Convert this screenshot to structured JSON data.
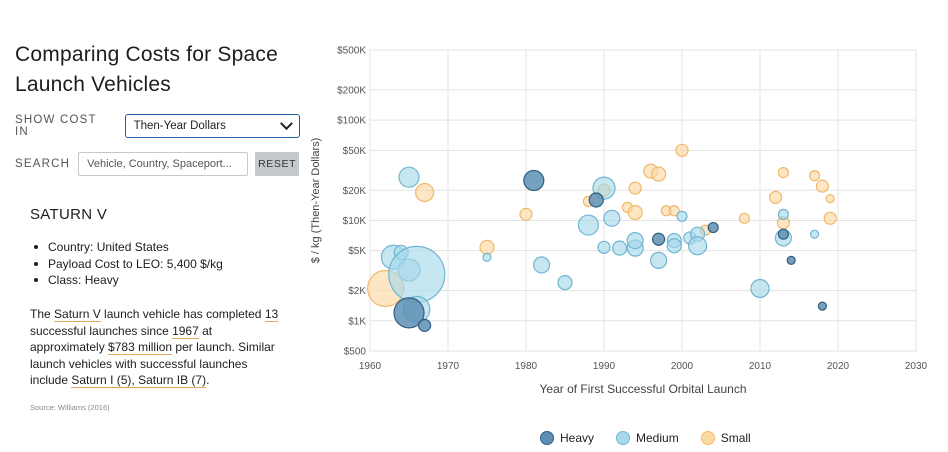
{
  "title_line1": "Comparing Costs for Space",
  "title_line2": "Launch Vehicles",
  "controls": {
    "show_cost_label": "SHOW COST IN",
    "cost_select_value": "Then-Year Dollars",
    "search_label": "SEARCH",
    "search_placeholder": "Vehicle, Country, Spaceport...",
    "reset_label": "RESET"
  },
  "vehicle": {
    "name": "SATURN V",
    "country_label": "Country:",
    "country": "United States",
    "payload_label": "Payload Cost to LEO:",
    "payload": "5,400 $/kg",
    "class_label": "Class:",
    "class": "Heavy",
    "para": {
      "t1": "The ",
      "name": "Saturn V",
      "t2": " launch vehicle has completed ",
      "count": "13",
      "t3": " successful launches since ",
      "year": "1967",
      "t4": " at approximately ",
      "cost": "$783 million",
      "t5": " per launch. Similar launch vehicles with successful launches include ",
      "similar": "Saturn I (5), Saturn IB (7)",
      "t6": "."
    }
  },
  "source": "Source: Williams (2016)",
  "colors": {
    "heavy_fill": "#5d8fb3",
    "heavy_stroke": "#2f5e80",
    "medium_fill": "#a8d8ea",
    "medium_stroke": "#6fb6d2",
    "small_fill": "#fcd9a4",
    "small_stroke": "#f1b869"
  },
  "chart_data": {
    "type": "scatter",
    "xlabel": "Year of First Successful Orbital Launch",
    "ylabel": "$ / kg (Then-Year Dollars)",
    "xlim": [
      1960,
      2030
    ],
    "ylim": [
      500,
      500000
    ],
    "y_scale": "log",
    "x_ticks": [
      1960,
      1970,
      1980,
      1990,
      2000,
      2010,
      2020,
      2030
    ],
    "y_ticks": [
      500,
      1000,
      2000,
      5000,
      10000,
      20000,
      50000,
      100000,
      200000,
      500000
    ],
    "y_tick_labels": [
      "$500",
      "$1K",
      "$2K",
      "$5K",
      "$10K",
      "$20K",
      "$50K",
      "$100K",
      "$200K",
      "$500K"
    ],
    "grid": true,
    "legend_position": "bottom",
    "series": [
      {
        "name": "Heavy",
        "points": [
          {
            "x": 1981,
            "y": 25000,
            "size": 10
          },
          {
            "x": 1989,
            "y": 16000,
            "size": 7
          },
          {
            "x": 1965,
            "y": 1200,
            "size": 15
          },
          {
            "x": 1967,
            "y": 900,
            "size": 6
          },
          {
            "x": 1997,
            "y": 6500,
            "size": 6
          },
          {
            "x": 2004,
            "y": 8500,
            "size": 5
          },
          {
            "x": 2013,
            "y": 7300,
            "size": 5
          },
          {
            "x": 2014,
            "y": 4000,
            "size": 4
          },
          {
            "x": 2018,
            "y": 1400,
            "size": 4
          }
        ]
      },
      {
        "name": "Medium",
        "points": [
          {
            "x": 1963,
            "y": 4300,
            "size": 12
          },
          {
            "x": 1964,
            "y": 4800,
            "size": 7
          },
          {
            "x": 1965,
            "y": 27000,
            "size": 10
          },
          {
            "x": 1965,
            "y": 3200,
            "size": 11
          },
          {
            "x": 1966,
            "y": 2900,
            "size": 28
          },
          {
            "x": 1966,
            "y": 1300,
            "size": 13
          },
          {
            "x": 1975,
            "y": 4300,
            "size": 4
          },
          {
            "x": 1982,
            "y": 3600,
            "size": 8
          },
          {
            "x": 1985,
            "y": 2400,
            "size": 7
          },
          {
            "x": 1988,
            "y": 9000,
            "size": 10
          },
          {
            "x": 1990,
            "y": 21000,
            "size": 11
          },
          {
            "x": 1990,
            "y": 5400,
            "size": 6
          },
          {
            "x": 1991,
            "y": 10500,
            "size": 8
          },
          {
            "x": 1992,
            "y": 5300,
            "size": 7
          },
          {
            "x": 1994,
            "y": 5300,
            "size": 8
          },
          {
            "x": 1994,
            "y": 6300,
            "size": 8
          },
          {
            "x": 1997,
            "y": 4000,
            "size": 8
          },
          {
            "x": 1999,
            "y": 6300,
            "size": 7
          },
          {
            "x": 1999,
            "y": 5600,
            "size": 7
          },
          {
            "x": 2000,
            "y": 11000,
            "size": 5
          },
          {
            "x": 2001,
            "y": 6700,
            "size": 6
          },
          {
            "x": 2002,
            "y": 7300,
            "size": 7
          },
          {
            "x": 2002,
            "y": 5600,
            "size": 9
          },
          {
            "x": 2010,
            "y": 2100,
            "size": 9
          },
          {
            "x": 2013,
            "y": 11500,
            "size": 5
          },
          {
            "x": 2013,
            "y": 6700,
            "size": 8
          },
          {
            "x": 2017,
            "y": 7300,
            "size": 4
          }
        ]
      },
      {
        "name": "Small",
        "points": [
          {
            "x": 1962,
            "y": 2100,
            "size": 18
          },
          {
            "x": 1967,
            "y": 19000,
            "size": 9
          },
          {
            "x": 1975,
            "y": 5400,
            "size": 7
          },
          {
            "x": 1980,
            "y": 11500,
            "size": 6
          },
          {
            "x": 1988,
            "y": 15500,
            "size": 5
          },
          {
            "x": 1990,
            "y": 20000,
            "size": 6
          },
          {
            "x": 1993,
            "y": 13500,
            "size": 5
          },
          {
            "x": 1994,
            "y": 12000,
            "size": 7
          },
          {
            "x": 1994,
            "y": 21000,
            "size": 6
          },
          {
            "x": 1996,
            "y": 31000,
            "size": 7
          },
          {
            "x": 1997,
            "y": 29000,
            "size": 7
          },
          {
            "x": 1998,
            "y": 12500,
            "size": 5
          },
          {
            "x": 1999,
            "y": 12500,
            "size": 5
          },
          {
            "x": 2000,
            "y": 50000,
            "size": 6
          },
          {
            "x": 2003,
            "y": 8000,
            "size": 5
          },
          {
            "x": 2008,
            "y": 10500,
            "size": 5
          },
          {
            "x": 2012,
            "y": 17000,
            "size": 6
          },
          {
            "x": 2013,
            "y": 30000,
            "size": 5
          },
          {
            "x": 2013,
            "y": 9500,
            "size": 6
          },
          {
            "x": 2017,
            "y": 28000,
            "size": 5
          },
          {
            "x": 2018,
            "y": 22000,
            "size": 6
          },
          {
            "x": 2019,
            "y": 16500,
            "size": 4
          },
          {
            "x": 2019,
            "y": 10500,
            "size": 6
          }
        ]
      }
    ]
  }
}
